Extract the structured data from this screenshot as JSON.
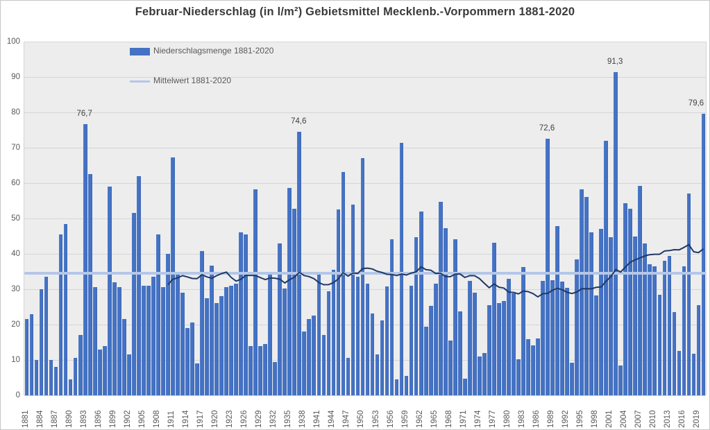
{
  "title": "Februar-Niederschlag (in l/m²) Gebietsmittel Mecklenb.-Vorpommern 1881-2020",
  "legend": {
    "series_label": "Niederschlagsmenge 1881-2020",
    "mean_label": "Mittelwert 1881-2020"
  },
  "chart_data": {
    "type": "bar",
    "title": "Februar-Niederschlag (in l/m²) Gebietsmittel Mecklenb.-Vorpommern 1881-2020",
    "xlabel": "",
    "ylabel": "",
    "ylim": [
      0,
      100
    ],
    "y_ticks": [
      0,
      10,
      20,
      30,
      40,
      50,
      60,
      70,
      80,
      90,
      100
    ],
    "grid": "horizontal",
    "legend_position": "top-left-inside",
    "x_start": 1881,
    "x_end": 2020,
    "x_tick_labels": [
      "1881",
      "1884",
      "1887",
      "1890",
      "1893",
      "1896",
      "1899",
      "1902",
      "1905",
      "1908",
      "1911",
      "1914",
      "1917",
      "1920",
      "1923",
      "1926",
      "1929",
      "1932",
      "1935",
      "1938",
      "1941",
      "1944",
      "1947",
      "1950",
      "1953",
      "1956",
      "1959",
      "1962",
      "1965",
      "1968",
      "1971",
      "1974",
      "1977",
      "1980",
      "1983",
      "1986",
      "1989",
      "1992",
      "1995",
      "1998",
      "2001",
      "2004",
      "2007",
      "2010",
      "2013",
      "2016",
      "2019"
    ],
    "values": [
      21.5,
      23,
      10,
      30,
      33.5,
      10,
      8,
      45.5,
      48.5,
      4.5,
      10.5,
      17,
      76.7,
      62.5,
      30.5,
      13,
      14,
      59,
      32,
      30.5,
      21.5,
      11.5,
      51.5,
      62,
      31,
      31,
      33.5,
      45.5,
      30.5,
      40,
      67.3,
      35,
      29,
      19,
      20.5,
      9,
      40.8,
      27.5,
      36.7,
      26,
      28,
      30.5,
      31,
      31.5,
      46,
      45.5,
      14,
      58.2,
      14,
      14.5,
      34.8,
      9.5,
      42.9,
      30.2,
      58.6,
      52.7,
      74.6,
      18,
      21.5,
      22.5,
      34.3,
      17,
      29.5,
      35.4,
      52.5,
      63.1,
      10.5,
      54,
      33.6,
      67,
      31.6,
      23.1,
      11.6,
      21.2,
      30.7,
      44.1,
      4.6,
      71.3,
      5.5,
      31,
      44.8,
      52,
      19.4,
      25.2,
      31.5,
      54.7,
      47.2,
      15.5,
      44.1,
      23.7,
      4.7,
      32.3,
      29,
      10.9,
      12,
      25.5,
      43.1,
      26,
      26.7,
      32.9,
      28.9,
      10.1,
      36.2,
      15.8,
      14.2,
      16,
      32.4,
      72.6,
      32.6,
      47.8,
      32.2,
      30.3,
      9.3,
      38.4,
      58.3,
      56,
      46.1,
      28.2,
      47,
      71.9,
      44.8,
      91.3,
      8.5,
      54.4,
      52.7,
      45,
      59.2,
      43,
      37,
      36.5,
      28.5,
      38,
      39.5,
      23.5,
      12.5,
      36.4,
      57,
      11.8,
      25.5,
      79.6
    ],
    "mean_value": 34.5,
    "moving_average_window": 30,
    "annotations": [
      {
        "year": 1893,
        "text": "76,7"
      },
      {
        "year": 1937,
        "text": "74,6"
      },
      {
        "year": 1988,
        "text": "72,6"
      },
      {
        "year": 2002,
        "text": "91,3"
      },
      {
        "year": 2020,
        "text": "79,6"
      }
    ]
  },
  "colors": {
    "bar": "#4472C4",
    "bar_edge": "#3A62AE",
    "mean_line": "#B4C7E7",
    "moving_avg_line": "#1F3864",
    "plot_bg": "#EDEDED",
    "gridline": "#D5D5D5",
    "axis_text": "#595959",
    "title_text": "#3A3A3A"
  }
}
